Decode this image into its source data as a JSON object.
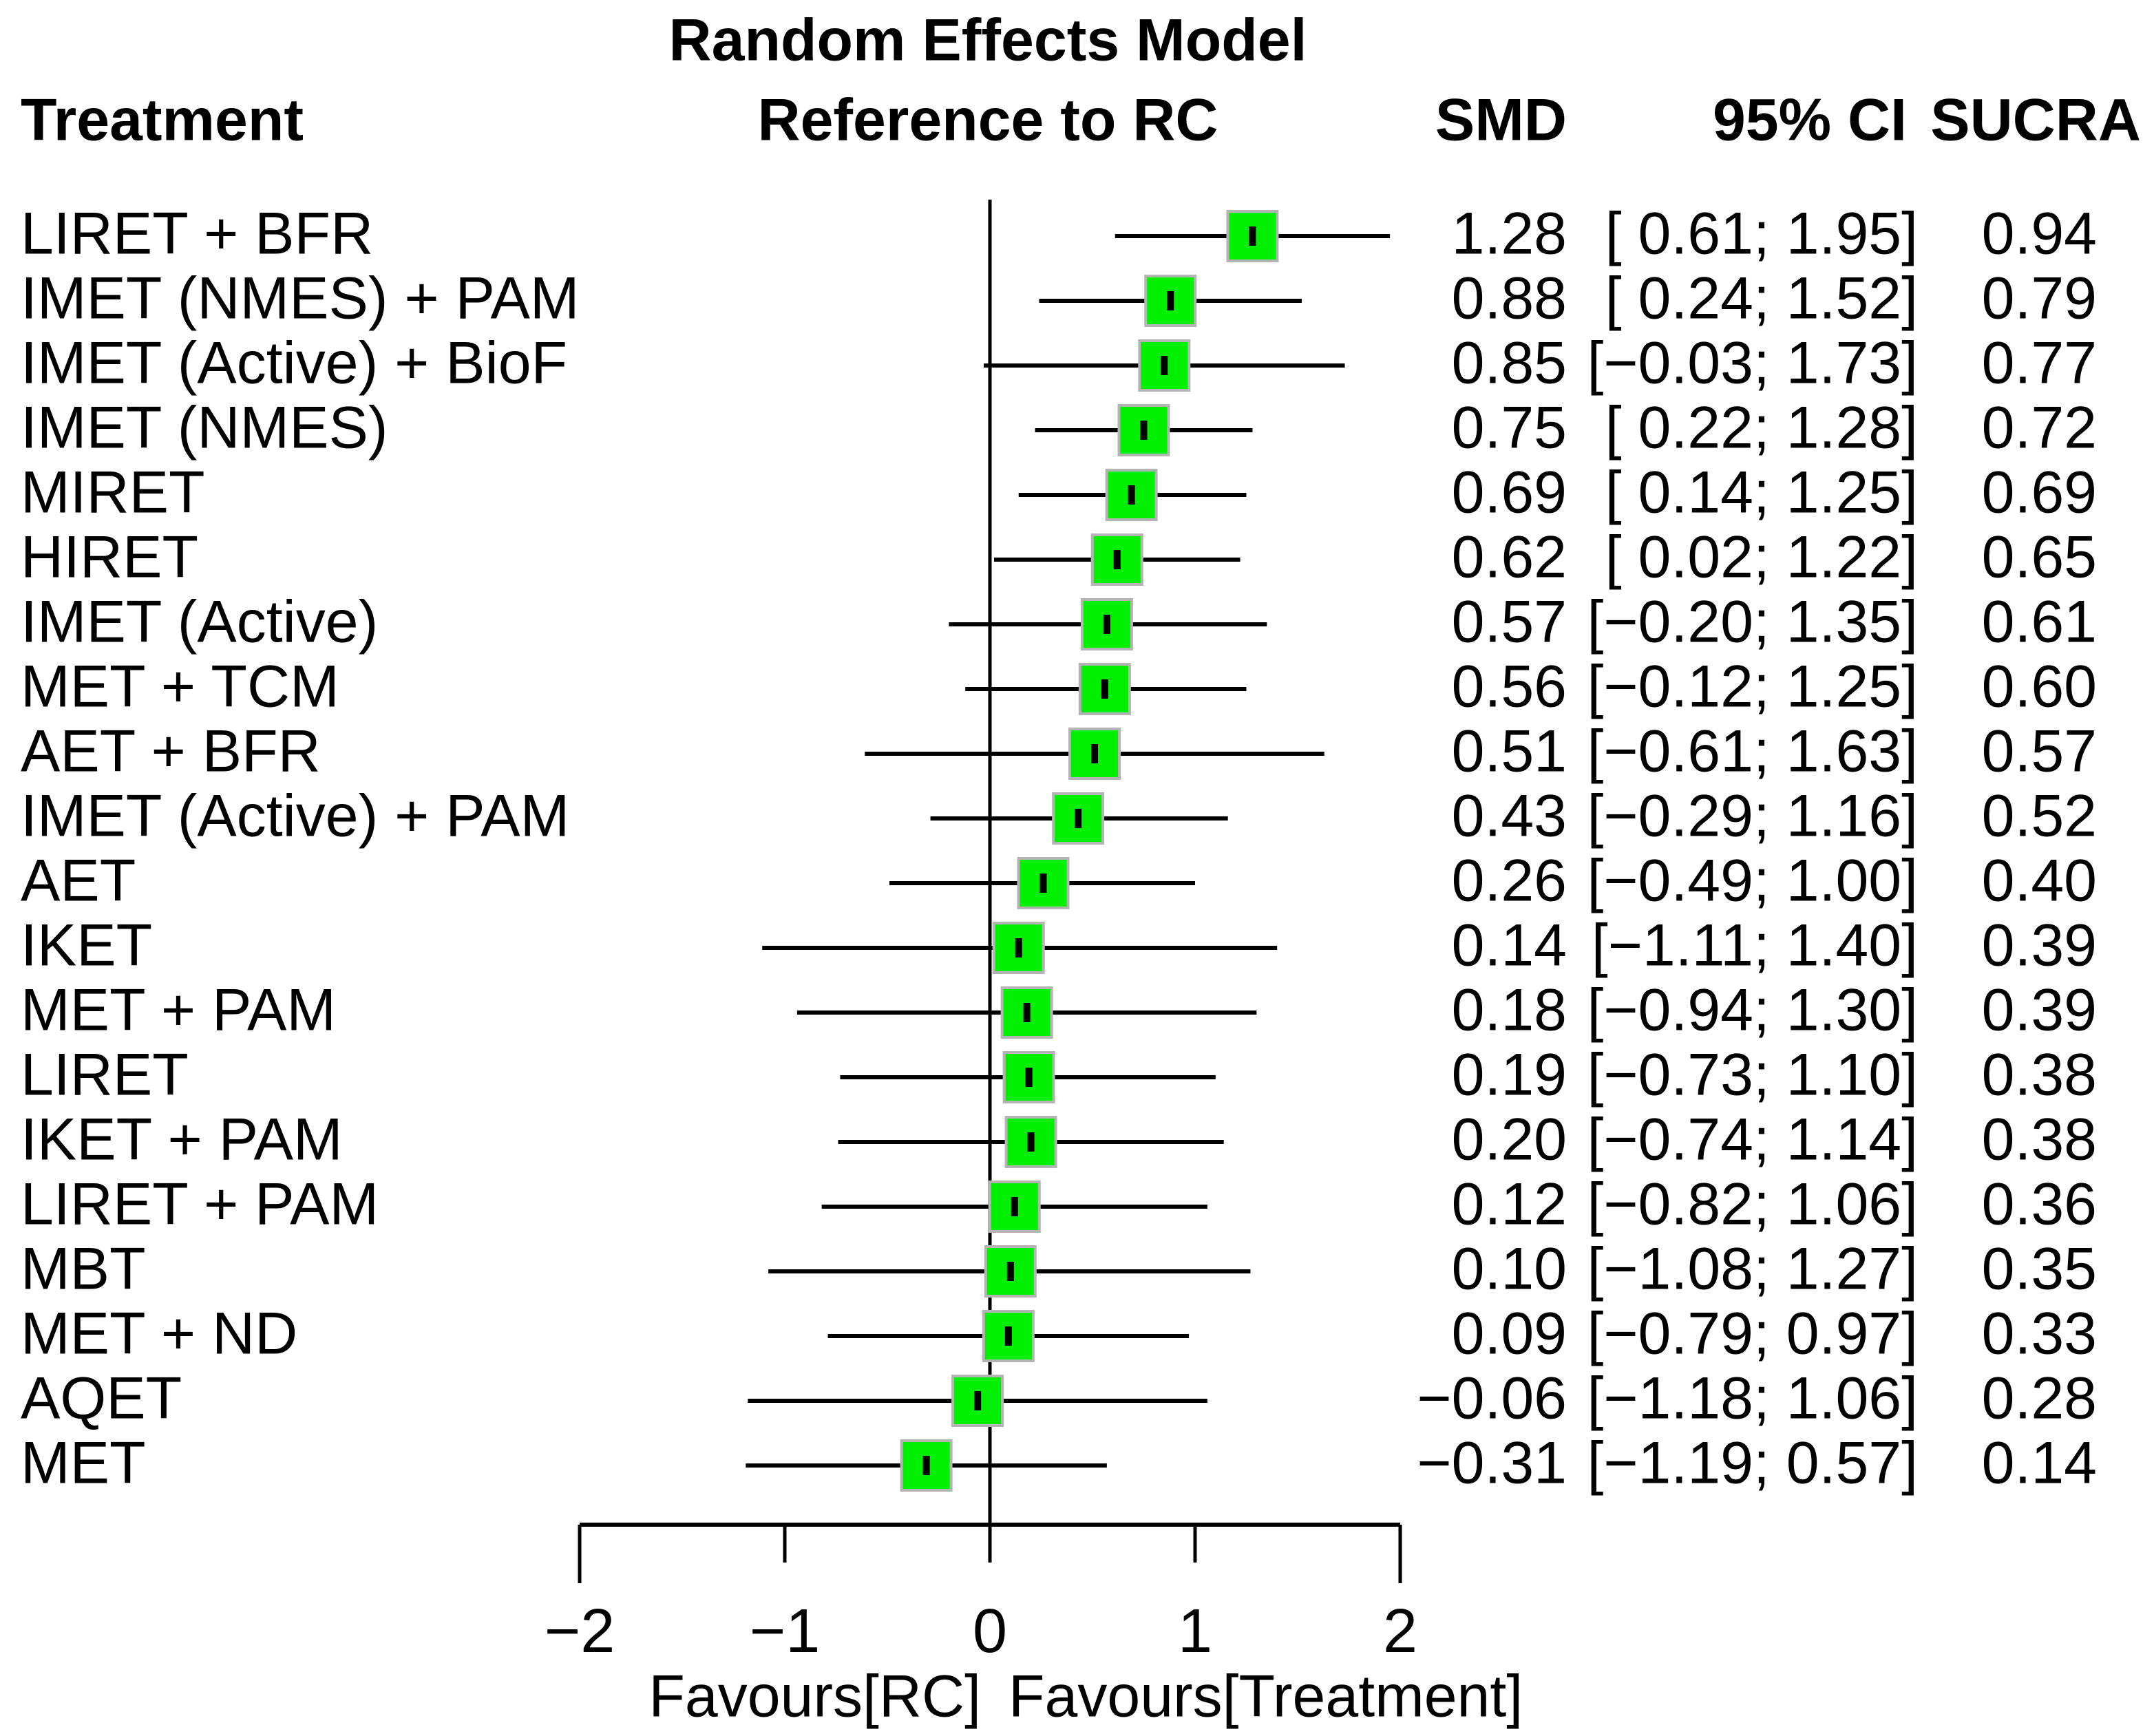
{
  "page": {
    "background": "#ffffff",
    "text_color": "#000000"
  },
  "header": {
    "treatment_col": "Treatment",
    "model_line1": "Random Effects Model",
    "model_line2": "Reference to RC",
    "smd_col": "SMD",
    "ci_col": "95% CI",
    "sucra_col": "SUCRA"
  },
  "chart_data": {
    "type": "forest",
    "title": "Random Effects Model",
    "subtitle": "Reference to RC",
    "effect_measure": "SMD",
    "reference_line": 0,
    "xlim": [
      -2,
      2
    ],
    "x_ticks": [
      -2,
      -1,
      0,
      1,
      2
    ],
    "x_tick_labels": [
      "−2",
      "−1",
      "0",
      "1",
      "2"
    ],
    "xlabel_left": "Favours[RC]",
    "xlabel_right": "Favours[Treatment]",
    "legend_position": "none",
    "grid": false,
    "colors": {
      "square_fill": "#00f000",
      "square_border": "#b4b4b4",
      "line": "#000000",
      "marker": "#000000"
    },
    "rows": [
      {
        "treatment": "LIRET + BFR",
        "smd": 1.28,
        "lower": 0.61,
        "upper": 1.95,
        "sucra": 0.94,
        "smd_text": "1.28",
        "ci_text": "[ 0.61; 1.95]",
        "sucra_text": "0.94"
      },
      {
        "treatment": "IMET (NMES) + PAM",
        "smd": 0.88,
        "lower": 0.24,
        "upper": 1.52,
        "sucra": 0.79,
        "smd_text": "0.88",
        "ci_text": "[ 0.24; 1.52]",
        "sucra_text": "0.79"
      },
      {
        "treatment": "IMET (Active) + BioF",
        "smd": 0.85,
        "lower": -0.03,
        "upper": 1.73,
        "sucra": 0.77,
        "smd_text": "0.85",
        "ci_text": "[−0.03; 1.73]",
        "sucra_text": "0.77"
      },
      {
        "treatment": "IMET (NMES)",
        "smd": 0.75,
        "lower": 0.22,
        "upper": 1.28,
        "sucra": 0.72,
        "smd_text": "0.75",
        "ci_text": "[ 0.22; 1.28]",
        "sucra_text": "0.72"
      },
      {
        "treatment": "MIRET",
        "smd": 0.69,
        "lower": 0.14,
        "upper": 1.25,
        "sucra": 0.69,
        "smd_text": "0.69",
        "ci_text": "[ 0.14; 1.25]",
        "sucra_text": "0.69"
      },
      {
        "treatment": "HIRET",
        "smd": 0.62,
        "lower": 0.02,
        "upper": 1.22,
        "sucra": 0.65,
        "smd_text": "0.62",
        "ci_text": "[ 0.02; 1.22]",
        "sucra_text": "0.65"
      },
      {
        "treatment": "IMET (Active)",
        "smd": 0.57,
        "lower": -0.2,
        "upper": 1.35,
        "sucra": 0.61,
        "smd_text": "0.57",
        "ci_text": "[−0.20; 1.35]",
        "sucra_text": "0.61"
      },
      {
        "treatment": "MET + TCM",
        "smd": 0.56,
        "lower": -0.12,
        "upper": 1.25,
        "sucra": 0.6,
        "smd_text": "0.56",
        "ci_text": "[−0.12; 1.25]",
        "sucra_text": "0.60"
      },
      {
        "treatment": "AET + BFR",
        "smd": 0.51,
        "lower": -0.61,
        "upper": 1.63,
        "sucra": 0.57,
        "smd_text": "0.51",
        "ci_text": "[−0.61; 1.63]",
        "sucra_text": "0.57"
      },
      {
        "treatment": "IMET (Active) + PAM",
        "smd": 0.43,
        "lower": -0.29,
        "upper": 1.16,
        "sucra": 0.52,
        "smd_text": "0.43",
        "ci_text": "[−0.29; 1.16]",
        "sucra_text": "0.52"
      },
      {
        "treatment": "AET",
        "smd": 0.26,
        "lower": -0.49,
        "upper": 1.0,
        "sucra": 0.4,
        "smd_text": "0.26",
        "ci_text": "[−0.49; 1.00]",
        "sucra_text": "0.40"
      },
      {
        "treatment": "IKET",
        "smd": 0.14,
        "lower": -1.11,
        "upper": 1.4,
        "sucra": 0.39,
        "smd_text": "0.14",
        "ci_text": "[−1.11; 1.40]",
        "sucra_text": "0.39"
      },
      {
        "treatment": "MET + PAM",
        "smd": 0.18,
        "lower": -0.94,
        "upper": 1.3,
        "sucra": 0.39,
        "smd_text": "0.18",
        "ci_text": "[−0.94; 1.30]",
        "sucra_text": "0.39"
      },
      {
        "treatment": "LIRET",
        "smd": 0.19,
        "lower": -0.73,
        "upper": 1.1,
        "sucra": 0.38,
        "smd_text": "0.19",
        "ci_text": "[−0.73; 1.10]",
        "sucra_text": "0.38"
      },
      {
        "treatment": "IKET + PAM",
        "smd": 0.2,
        "lower": -0.74,
        "upper": 1.14,
        "sucra": 0.38,
        "smd_text": "0.20",
        "ci_text": "[−0.74; 1.14]",
        "sucra_text": "0.38"
      },
      {
        "treatment": "LIRET + PAM",
        "smd": 0.12,
        "lower": -0.82,
        "upper": 1.06,
        "sucra": 0.36,
        "smd_text": "0.12",
        "ci_text": "[−0.82; 1.06]",
        "sucra_text": "0.36"
      },
      {
        "treatment": "MBT",
        "smd": 0.1,
        "lower": -1.08,
        "upper": 1.27,
        "sucra": 0.35,
        "smd_text": "0.10",
        "ci_text": "[−1.08; 1.27]",
        "sucra_text": "0.35"
      },
      {
        "treatment": "MET + ND",
        "smd": 0.09,
        "lower": -0.79,
        "upper": 0.97,
        "sucra": 0.33,
        "smd_text": "0.09",
        "ci_text": "[−0.79; 0.97]",
        "sucra_text": "0.33"
      },
      {
        "treatment": "AQET",
        "smd": -0.06,
        "lower": -1.18,
        "upper": 1.06,
        "sucra": 0.28,
        "smd_text": "−0.06",
        "ci_text": "[−1.18; 1.06]",
        "sucra_text": "0.28"
      },
      {
        "treatment": "MET",
        "smd": -0.31,
        "lower": -1.19,
        "upper": 0.57,
        "sucra": 0.14,
        "smd_text": "−0.31",
        "ci_text": "[−1.19; 0.57]",
        "sucra_text": "0.14"
      }
    ]
  }
}
